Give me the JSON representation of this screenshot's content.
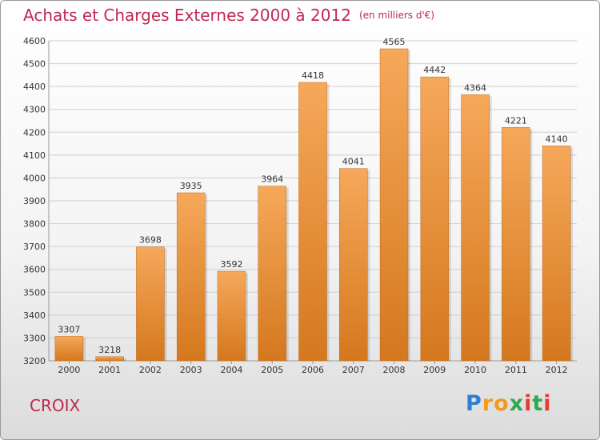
{
  "header": {
    "title": "Achats et Charges Externes 2000 à 2012",
    "unit": "(en milliers d'€)"
  },
  "footer": {
    "city": "CROIX",
    "brand_letters": [
      "P",
      "r",
      "o",
      "x",
      "i",
      "t",
      "i"
    ],
    "brand_colors": [
      "#2f7fd1",
      "#f39a1e",
      "#f39a1e",
      "#2fa84f",
      "#e63b2e",
      "#2fa84f",
      "#e63b2e"
    ]
  },
  "colors": {
    "accent": "#c02850",
    "bar_top": "#f6a85a",
    "bar_bottom": "#d4781e",
    "grid": "#cfcfcf"
  },
  "chart_data": {
    "type": "bar",
    "title": "Achats et Charges Externes 2000 à 2012",
    "subtitle": "(en milliers d'€)",
    "xlabel": "",
    "ylabel": "",
    "categories": [
      "2000",
      "2001",
      "2002",
      "2003",
      "2004",
      "2005",
      "2006",
      "2007",
      "2008",
      "2009",
      "2010",
      "2011",
      "2012"
    ],
    "values": [
      3307,
      3218,
      3698,
      3935,
      3592,
      3964,
      4418,
      4041,
      4565,
      4442,
      4364,
      4221,
      4140
    ],
    "ylim": [
      3200,
      4600
    ],
    "yticks": [
      3200,
      3300,
      3400,
      3500,
      3600,
      3700,
      3800,
      3900,
      4000,
      4100,
      4200,
      4300,
      4400,
      4500,
      4600
    ],
    "grid": true,
    "legend": "none"
  }
}
